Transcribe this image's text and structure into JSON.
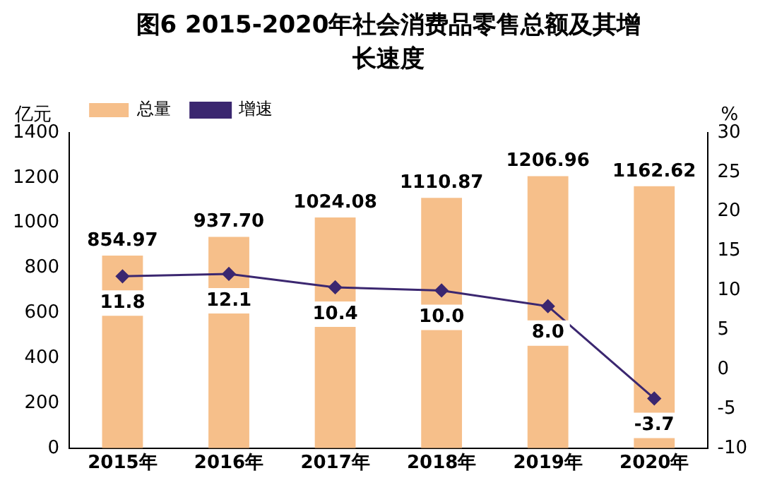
{
  "chart_data": {
    "type": "bar",
    "title": "图6  2015-2020年社会消费品零售总额及其增长速度",
    "ylabel": "亿元",
    "y2label": "%",
    "categories": [
      "2015年",
      "2016年",
      "2017年",
      "2018年",
      "2019年",
      "2020年"
    ],
    "series": [
      {
        "name": "总量",
        "color": "#f6bf8a",
        "values": [
          854.97,
          937.7,
          1024.08,
          1110.87,
          1206.96,
          1162.62
        ],
        "value_labels": [
          "854.97",
          "937.70",
          "1024.08",
          "1110.87",
          "1206.96",
          "1162.62"
        ]
      },
      {
        "name": "增速",
        "type": "line",
        "axis": "y2",
        "color": "#3b2770",
        "marker": "diamond",
        "values": [
          11.8,
          12.1,
          10.4,
          10.0,
          8.0,
          -3.7
        ],
        "value_labels": [
          "11.8",
          "12.1",
          "10.4",
          "10.0",
          "8.0",
          "-3.7"
        ]
      }
    ],
    "ylim": [
      0,
      1400
    ],
    "yticks": [
      0,
      200,
      400,
      600,
      800,
      1000,
      1200,
      1400
    ],
    "y2lim": [
      -10,
      30
    ],
    "y2ticks": [
      -10,
      -5,
      0,
      5,
      10,
      15,
      20,
      25,
      30
    ],
    "legend": "top left",
    "grid": false
  }
}
